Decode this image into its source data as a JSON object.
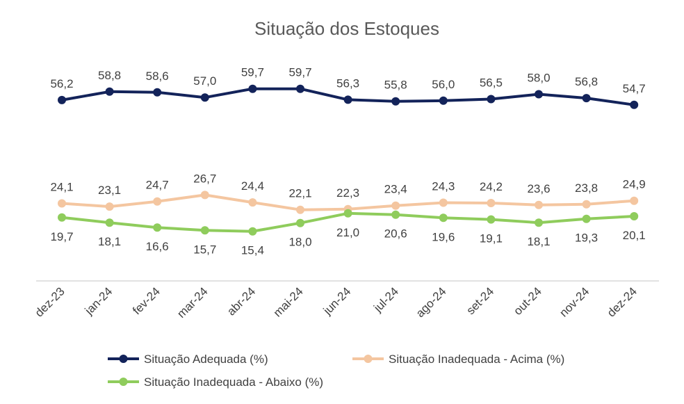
{
  "chart_data": {
    "type": "line",
    "title": "Situação dos Estoques",
    "xlabel": "",
    "ylabel": "",
    "ylim": [
      0,
      70
    ],
    "grid": false,
    "legend_position": "bottom",
    "categories": [
      "dez-23",
      "jan-24",
      "fev-24",
      "mar-24",
      "abr-24",
      "mai-24",
      "jun-24",
      "jul-24",
      "ago-24",
      "set-24",
      "out-24",
      "nov-24",
      "dez-24"
    ],
    "series": [
      {
        "name": "Situação Adequada (%)",
        "color": "#13235a",
        "values": [
          56.2,
          58.8,
          58.6,
          57.0,
          59.7,
          59.7,
          56.3,
          55.8,
          56.0,
          56.5,
          58.0,
          56.8,
          54.7
        ],
        "labels": [
          "56,2",
          "58,8",
          "58,6",
          "57,0",
          "59,7",
          "59,7",
          "56,3",
          "55,8",
          "56,0",
          "56,5",
          "58,0",
          "56,8",
          "54,7"
        ],
        "label_position": "above"
      },
      {
        "name": "Situação Inadequada - Acima (%)",
        "color": "#f4c6a0",
        "values": [
          24.1,
          23.1,
          24.7,
          26.7,
          24.4,
          22.1,
          22.3,
          23.4,
          24.3,
          24.2,
          23.6,
          23.8,
          24.9
        ],
        "labels": [
          "24,1",
          "23,1",
          "24,7",
          "26,7",
          "24,4",
          "22,1",
          "22,3",
          "23,4",
          "24,3",
          "24,2",
          "23,6",
          "23,8",
          "24,9"
        ],
        "label_position": "above"
      },
      {
        "name": "Situação Inadequada - Abaixo (%)",
        "color": "#8fcc5c",
        "values": [
          19.7,
          18.1,
          16.6,
          15.7,
          15.4,
          18.0,
          21.0,
          20.6,
          19.6,
          19.1,
          18.1,
          19.3,
          20.1
        ],
        "labels": [
          "19,7",
          "18,1",
          "16,6",
          "15,7",
          "15,4",
          "18,0",
          "21,0",
          "20,6",
          "19,6",
          "19,1",
          "18,1",
          "19,3",
          "20,1"
        ],
        "label_position": "below"
      }
    ]
  }
}
